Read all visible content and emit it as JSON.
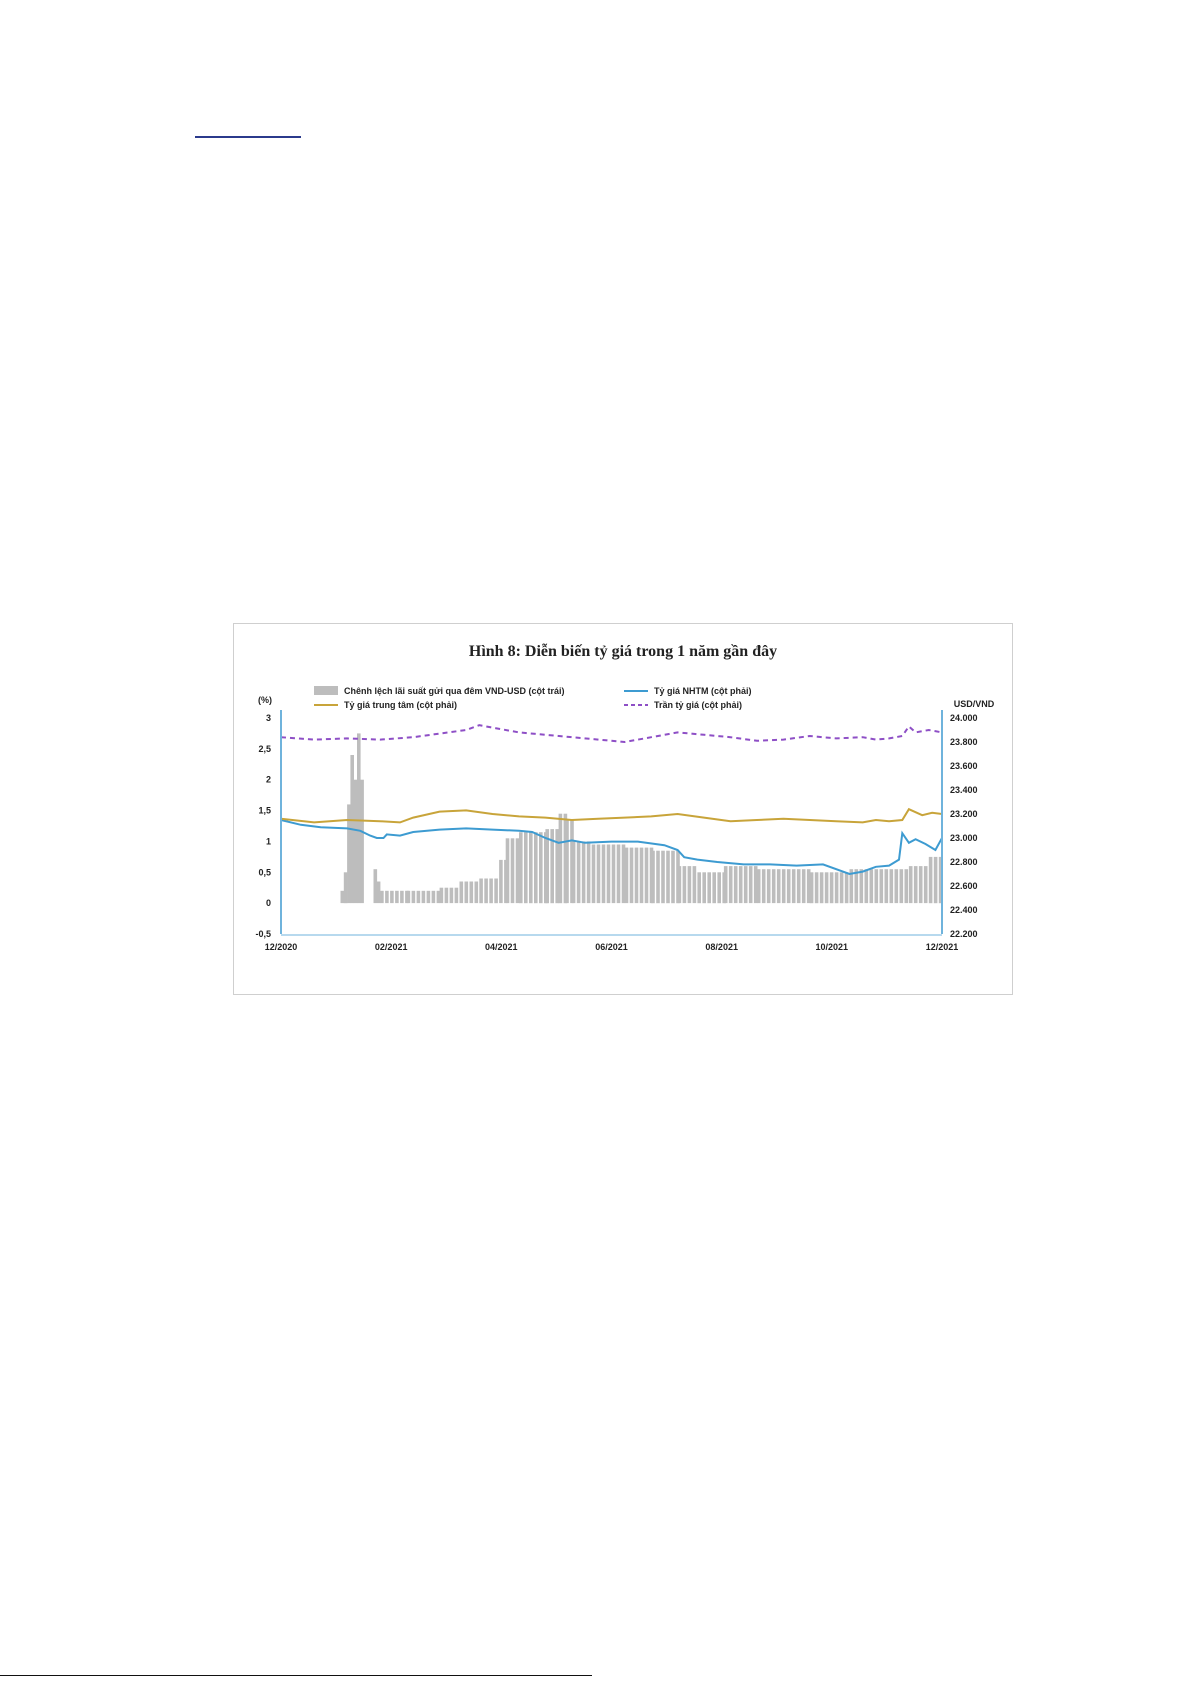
{
  "chart_data": {
    "type": "bar",
    "title": "Hình 8: Diễn biến tỷ giá trong 1 năm gần đây",
    "ylabel_left": "(%)",
    "ylabel_right": "USD/VND",
    "ylim_left": [
      -0.5,
      3
    ],
    "ylim_right": [
      22200,
      24000
    ],
    "yticks_left": [
      "-0,5",
      "0",
      "0,5",
      "1",
      "1,5",
      "2",
      "2,5",
      "3"
    ],
    "yticks_right": [
      "22.200",
      "22.400",
      "22.600",
      "22.800",
      "23.000",
      "23.200",
      "23.400",
      "23.600",
      "23.800",
      "24.000"
    ],
    "x_tick_labels": [
      "12/2020",
      "02/2021",
      "04/2021",
      "06/2021",
      "08/2021",
      "10/2021",
      "12/2021"
    ],
    "colors": {
      "spread": "#bdbdbd",
      "nhtm": "#3d9bd1",
      "trung_tam": "#c8a43a",
      "tran": "#8e4fc6",
      "axis": "#6fb3dc"
    },
    "legend": [
      {
        "label": "Chênh lệch lãi suất gửi qua đêm VND-USD (cột trái)",
        "kind": "bar"
      },
      {
        "label": "Tỷ giá NHTM (cột phải)",
        "kind": "line"
      },
      {
        "label": "Tỷ giá trung tâm (cột phải)",
        "kind": "line"
      },
      {
        "label": "Trần tỷ giá (cột phải)",
        "kind": "dash"
      }
    ],
    "series_lines": [
      {
        "name": "Tỷ giá NHTM (cột phải)",
        "axis": "right",
        "style": "solid",
        "x": [
          0,
          0.03,
          0.06,
          0.1,
          0.12,
          0.135,
          0.145,
          0.155,
          0.16,
          0.18,
          0.2,
          0.24,
          0.28,
          0.32,
          0.36,
          0.38,
          0.4,
          0.42,
          0.44,
          0.46,
          0.5,
          0.54,
          0.58,
          0.6,
          0.61,
          0.63,
          0.66,
          0.7,
          0.74,
          0.78,
          0.82,
          0.86,
          0.88,
          0.9,
          0.92,
          0.935,
          0.94,
          0.95,
          0.96,
          0.975,
          0.99,
          1
        ],
        "y": [
          23150,
          23110,
          23090,
          23080,
          23060,
          23020,
          23000,
          23000,
          23030,
          23020,
          23050,
          23070,
          23080,
          23070,
          23060,
          23050,
          23000,
          22960,
          22980,
          22960,
          22970,
          22970,
          22940,
          22900,
          22840,
          22820,
          22800,
          22780,
          22780,
          22770,
          22780,
          22700,
          22720,
          22760,
          22770,
          22820,
          23040,
          22960,
          22990,
          22950,
          22900,
          23000
        ]
      },
      {
        "name": "Tỷ giá trung tâm (cột phải)",
        "axis": "right",
        "style": "solid",
        "x": [
          0,
          0.05,
          0.1,
          0.15,
          0.18,
          0.2,
          0.24,
          0.28,
          0.32,
          0.36,
          0.4,
          0.44,
          0.48,
          0.52,
          0.56,
          0.6,
          0.64,
          0.68,
          0.72,
          0.76,
          0.8,
          0.84,
          0.88,
          0.9,
          0.92,
          0.94,
          0.95,
          0.97,
          0.985,
          1
        ],
        "y": [
          23160,
          23130,
          23150,
          23140,
          23130,
          23170,
          23220,
          23230,
          23200,
          23180,
          23170,
          23150,
          23160,
          23170,
          23180,
          23200,
          23170,
          23140,
          23150,
          23160,
          23150,
          23140,
          23130,
          23150,
          23140,
          23150,
          23240,
          23190,
          23210,
          23200
        ]
      },
      {
        "name": "Trần tỷ giá (cột phải)",
        "axis": "right",
        "style": "dashed",
        "x": [
          0,
          0.05,
          0.1,
          0.15,
          0.2,
          0.24,
          0.28,
          0.3,
          0.32,
          0.36,
          0.4,
          0.44,
          0.48,
          0.52,
          0.56,
          0.6,
          0.64,
          0.68,
          0.72,
          0.76,
          0.8,
          0.84,
          0.88,
          0.9,
          0.92,
          0.94,
          0.95,
          0.96,
          0.98,
          1
        ],
        "y": [
          23840,
          23820,
          23830,
          23820,
          23840,
          23870,
          23900,
          23940,
          23920,
          23880,
          23860,
          23840,
          23820,
          23800,
          23840,
          23880,
          23860,
          23840,
          23810,
          23820,
          23850,
          23830,
          23840,
          23820,
          23830,
          23850,
          23930,
          23880,
          23900,
          23880
        ]
      }
    ],
    "bar_series": {
      "name": "Chênh lệch lãi suất gửi qua đêm VND-USD (cột trái)",
      "axis": "left",
      "segments": [
        {
          "x0": 0.0,
          "x1": 0.09,
          "value": 0.0
        },
        {
          "x0": 0.09,
          "x1": 0.095,
          "value": 0.2
        },
        {
          "x0": 0.095,
          "x1": 0.1,
          "value": 0.5
        },
        {
          "x0": 0.1,
          "x1": 0.105,
          "value": 1.6
        },
        {
          "x0": 0.105,
          "x1": 0.11,
          "value": 2.4
        },
        {
          "x0": 0.11,
          "x1": 0.115,
          "value": 2.0
        },
        {
          "x0": 0.115,
          "x1": 0.12,
          "value": 2.75
        },
        {
          "x0": 0.12,
          "x1": 0.125,
          "value": 2.0
        },
        {
          "x0": 0.125,
          "x1": 0.14,
          "value": 0.0
        },
        {
          "x0": 0.14,
          "x1": 0.145,
          "value": 0.55
        },
        {
          "x0": 0.145,
          "x1": 0.15,
          "value": 0.35
        },
        {
          "x0": 0.15,
          "x1": 0.19,
          "value": 0.2
        },
        {
          "x0": 0.19,
          "x1": 0.24,
          "value": 0.2
        },
        {
          "x0": 0.24,
          "x1": 0.27,
          "value": 0.25
        },
        {
          "x0": 0.27,
          "x1": 0.3,
          "value": 0.35
        },
        {
          "x0": 0.3,
          "x1": 0.33,
          "value": 0.4
        },
        {
          "x0": 0.33,
          "x1": 0.34,
          "value": 0.7
        },
        {
          "x0": 0.34,
          "x1": 0.36,
          "value": 1.05
        },
        {
          "x0": 0.36,
          "x1": 0.4,
          "value": 1.15
        },
        {
          "x0": 0.4,
          "x1": 0.42,
          "value": 1.2
        },
        {
          "x0": 0.42,
          "x1": 0.43,
          "value": 1.45
        },
        {
          "x0": 0.43,
          "x1": 0.44,
          "value": 1.35
        },
        {
          "x0": 0.44,
          "x1": 0.47,
          "value": 1.0
        },
        {
          "x0": 0.47,
          "x1": 0.52,
          "value": 0.95
        },
        {
          "x0": 0.52,
          "x1": 0.56,
          "value": 0.9
        },
        {
          "x0": 0.56,
          "x1": 0.6,
          "value": 0.85
        },
        {
          "x0": 0.6,
          "x1": 0.63,
          "value": 0.6
        },
        {
          "x0": 0.63,
          "x1": 0.67,
          "value": 0.5
        },
        {
          "x0": 0.67,
          "x1": 0.72,
          "value": 0.6
        },
        {
          "x0": 0.72,
          "x1": 0.8,
          "value": 0.55
        },
        {
          "x0": 0.8,
          "x1": 0.86,
          "value": 0.5
        },
        {
          "x0": 0.86,
          "x1": 0.95,
          "value": 0.55
        },
        {
          "x0": 0.95,
          "x1": 0.98,
          "value": 0.6
        },
        {
          "x0": 0.98,
          "x1": 1.0,
          "value": 0.75
        }
      ]
    }
  }
}
